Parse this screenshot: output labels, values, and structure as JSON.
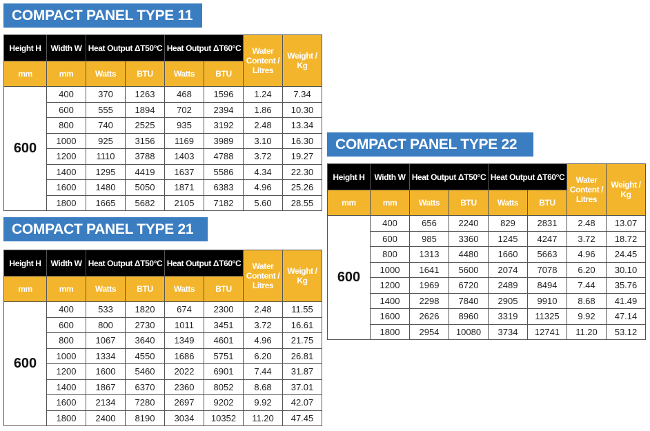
{
  "colors": {
    "title_bg": "#3b7dc1",
    "header_dark": "#000000",
    "header_accent": "#f3b52c"
  },
  "headers": {
    "height": "Height H",
    "width": "Width W",
    "heat50": "Heat Output ΔT50°C",
    "heat60": "Heat Output ΔT60°C",
    "water": "Water Content / Litres",
    "weight": "Weight / Kg",
    "mm_h": "mm",
    "mm_w": "mm",
    "watts": "Watts",
    "btu": "BTU"
  },
  "tables": [
    {
      "title": "COMPACT PANEL TYPE 11",
      "height": "600",
      "rows": [
        [
          "400",
          "370",
          "1263",
          "468",
          "1596",
          "1.24",
          "7.34"
        ],
        [
          "600",
          "555",
          "1894",
          "702",
          "2394",
          "1.86",
          "10.30"
        ],
        [
          "800",
          "740",
          "2525",
          "935",
          "3192",
          "2.48",
          "13.34"
        ],
        [
          "1000",
          "925",
          "3156",
          "1169",
          "3989",
          "3.10",
          "16.30"
        ],
        [
          "1200",
          "1110",
          "3788",
          "1403",
          "4788",
          "3.72",
          "19.27"
        ],
        [
          "1400",
          "1295",
          "4419",
          "1637",
          "5586",
          "4.34",
          "22.30"
        ],
        [
          "1600",
          "1480",
          "5050",
          "1871",
          "6383",
          "4.96",
          "25.26"
        ],
        [
          "1800",
          "1665",
          "5682",
          "2105",
          "7182",
          "5.60",
          "28.55"
        ]
      ]
    },
    {
      "title": "COMPACT PANEL TYPE 21",
      "height": "600",
      "rows": [
        [
          "400",
          "533",
          "1820",
          "674",
          "2300",
          "2.48",
          "11.55"
        ],
        [
          "600",
          "800",
          "2730",
          "1011",
          "3451",
          "3.72",
          "16.61"
        ],
        [
          "800",
          "1067",
          "3640",
          "1349",
          "4601",
          "4.96",
          "21.75"
        ],
        [
          "1000",
          "1334",
          "4550",
          "1686",
          "5751",
          "6.20",
          "26.81"
        ],
        [
          "1200",
          "1600",
          "5460",
          "2022",
          "6901",
          "7.44",
          "31.87"
        ],
        [
          "1400",
          "1867",
          "6370",
          "2360",
          "8052",
          "8.68",
          "37.01"
        ],
        [
          "1600",
          "2134",
          "7280",
          "2697",
          "9202",
          "9.92",
          "42.07"
        ],
        [
          "1800",
          "2400",
          "8190",
          "3034",
          "10352",
          "11.20",
          "47.45"
        ]
      ]
    },
    {
      "title": "COMPACT PANEL TYPE 22",
      "height": "600",
      "rows": [
        [
          "400",
          "656",
          "2240",
          "829",
          "2831",
          "2.48",
          "13.07"
        ],
        [
          "600",
          "985",
          "3360",
          "1245",
          "4247",
          "3.72",
          "18.72"
        ],
        [
          "800",
          "1313",
          "4480",
          "1660",
          "5663",
          "4.96",
          "24.45"
        ],
        [
          "1000",
          "1641",
          "5600",
          "2074",
          "7078",
          "6.20",
          "30.10"
        ],
        [
          "1200",
          "1969",
          "6720",
          "2489",
          "8494",
          "7.44",
          "35.76"
        ],
        [
          "1400",
          "2298",
          "7840",
          "2905",
          "9910",
          "8.68",
          "41.49"
        ],
        [
          "1600",
          "2626",
          "8960",
          "3319",
          "11325",
          "9.92",
          "47.14"
        ],
        [
          "1800",
          "2954",
          "10080",
          "3734",
          "12741",
          "11.20",
          "53.12"
        ]
      ]
    }
  ]
}
